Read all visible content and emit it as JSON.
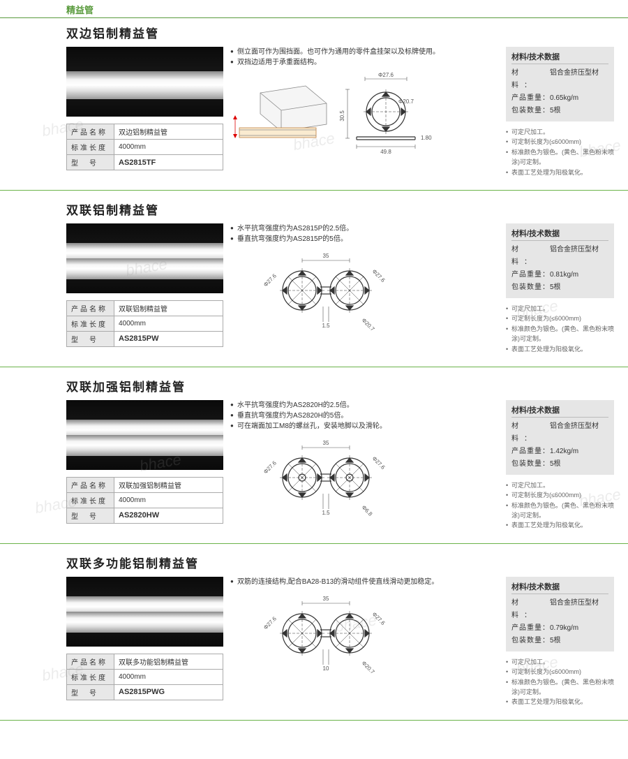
{
  "page_title": "精益管",
  "watermark_text": "bhace",
  "common": {
    "spec_labels": {
      "name": "产品名称",
      "length": "标准长度",
      "model": "型　号"
    },
    "data_title": "材料/技术数据",
    "data_labels": {
      "material": "材　　料：",
      "weight": "产品重量：",
      "packqty": "包装数量："
    },
    "material_value": "铝合金挤压型材",
    "pack_value": "5根",
    "length_value": "4000mm",
    "notes": [
      "可定尺加工。",
      "可定制长度为(≤6000mm)",
      "标准颜色为银色。(黄色、黑色粉末喷涂)可定制。",
      "表面工艺处理为阳极氧化。"
    ]
  },
  "products": [
    {
      "title": "双边铝制精益管",
      "name": "双边铝制精益管",
      "model": "AS2815TF",
      "weight": "0.65kg/m",
      "features": [
        "侧立面可作为围挡面。也可作为通用的零件盒挂架以及标牌使用。",
        "双挡边适用于承重面结构。"
      ],
      "dims": {
        "a": "Φ27.6",
        "b": "Φ20.7",
        "c": "30.5",
        "d": "49.8",
        "e": "1.80"
      },
      "tube_style": "single"
    },
    {
      "title": "双联铝制精益管",
      "name": "双联铝制精益管",
      "model": "AS2815PW",
      "weight": "0.81kg/m",
      "features": [
        "水平抗弯强度约为AS2815P的2.5倍。",
        "垂直抗弯强度约为AS2815P的5倍。"
      ],
      "dims": {
        "a": "35",
        "b": "Φ27.6",
        "c": "Φ20.7",
        "d": "1.5"
      },
      "tube_style": "double"
    },
    {
      "title": "双联加强铝制精益管",
      "name": "双联加强铝制精益管",
      "model": "AS2820HW",
      "weight": "1.42kg/m",
      "features": [
        "水平抗弯强度约为AS2820H的2.5倍。",
        "垂直抗弯强度约为AS2820H的5倍。",
        "可在端面加工M8的螺丝孔，安装地脚以及滑轮。"
      ],
      "dims": {
        "a": "35",
        "b": "Φ27.6",
        "c": "Φ6.8",
        "d": "1.5"
      },
      "tube_style": "double"
    },
    {
      "title": "双联多功能铝制精益管",
      "name": "双联多功能铝制精益管",
      "model": "AS2815PWG",
      "weight": "0.79kg/m",
      "features": [
        "双筋的连接结构,配合BA28-B13的滑动组件使直线滑动更加稳定。"
      ],
      "dims": {
        "a": "35",
        "b": "Φ27.6",
        "c": "Φ20.7",
        "d": "10"
      },
      "tube_style": "double"
    }
  ]
}
